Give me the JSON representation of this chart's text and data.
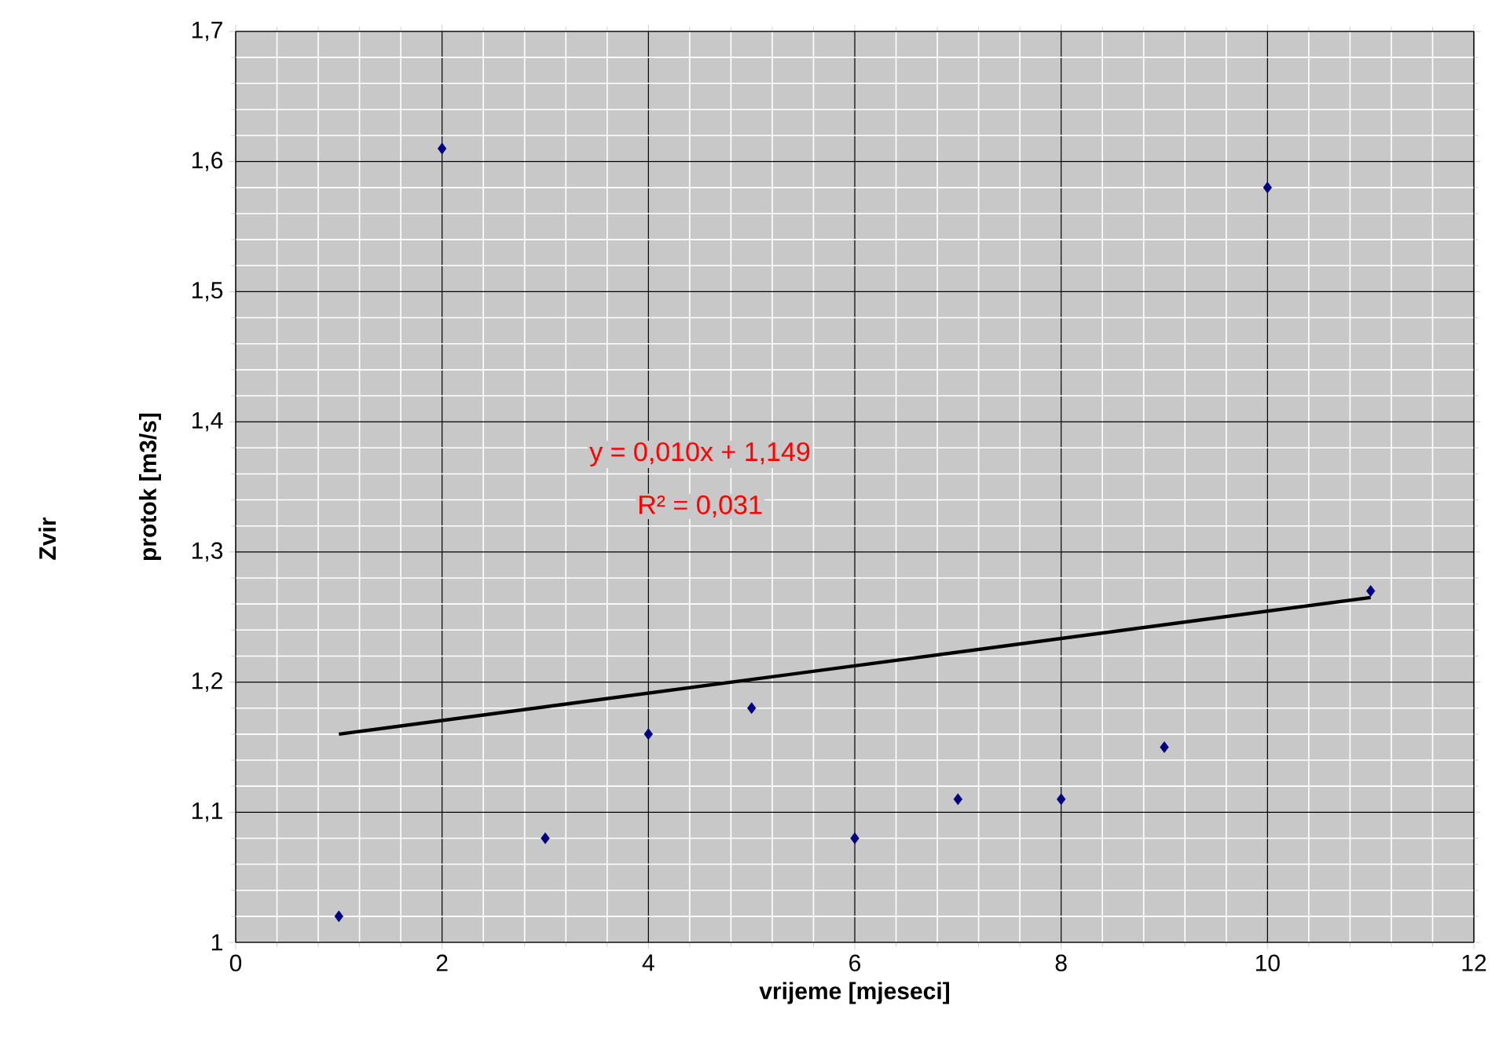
{
  "chart_data": {
    "type": "scatter",
    "title": "Zvir",
    "xlabel": "vrijeme [mjeseci]",
    "ylabel": "protok [m3/s]",
    "xlim": [
      0,
      12
    ],
    "xticks": [
      0,
      2,
      4,
      6,
      8,
      10,
      12
    ],
    "ylim": [
      1,
      1.7
    ],
    "yticks": [
      1,
      {
        "value": 1.1,
        "label": "1,1"
      },
      {
        "value": 1.2,
        "label": "1,2"
      },
      {
        "value": 1.3,
        "label": "1,3"
      },
      {
        "value": 1.4,
        "label": "1,4"
      },
      {
        "value": 1.5,
        "label": "1,5"
      },
      {
        "value": 1.6,
        "label": "1,6"
      },
      {
        "value": 1.7,
        "label": "1,7"
      }
    ],
    "grid": true,
    "marker": "diamond",
    "series": [
      {
        "color": "#000080",
        "x": [
          1,
          2,
          3,
          4,
          5,
          6,
          7,
          8,
          9,
          10,
          11
        ],
        "values": [
          1.02,
          1.61,
          1.08,
          1.16,
          1.18,
          1.08,
          1.11,
          1.11,
          1.15,
          1.58,
          1.27
        ]
      },
      {
        "type": "line",
        "color": "#000000",
        "line_style": "solid",
        "marker": "none",
        "x": [
          1,
          11
        ],
        "values": [
          1.16,
          1.265
        ]
      }
    ],
    "annotations": [
      "y = 0,010x + 1,149",
      "R² = 0,031"
    ]
  }
}
